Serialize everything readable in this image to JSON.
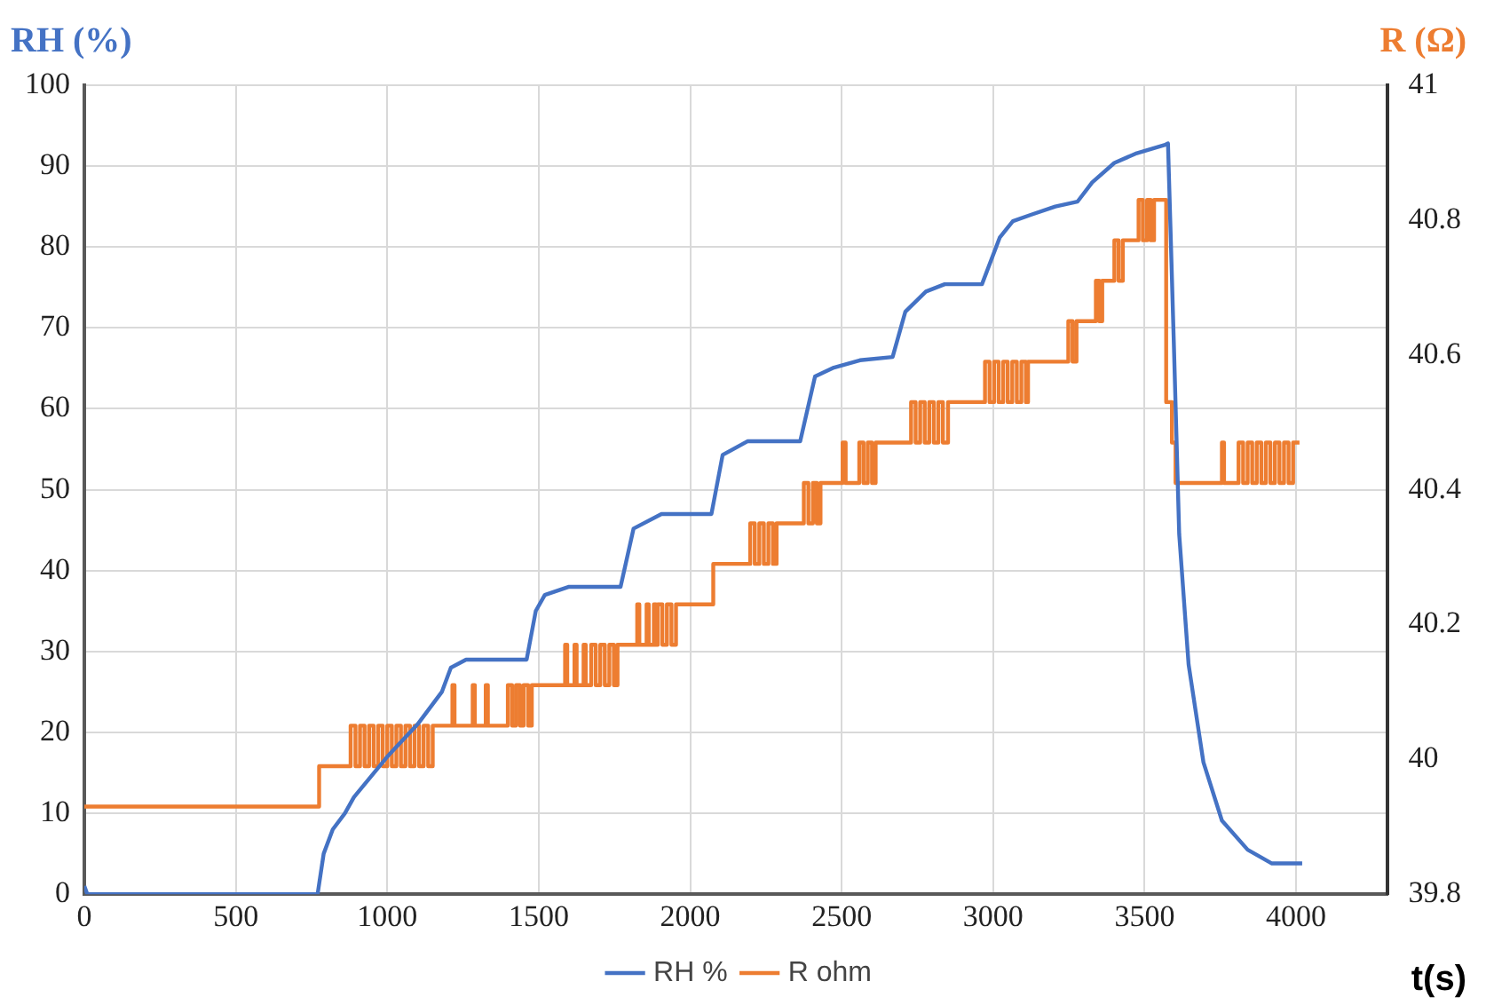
{
  "chart_data": {
    "type": "line",
    "ylabel": "RH (%)",
    "y2label": "R (Ω)",
    "xlabel": "t(s)",
    "xlim": [
      0,
      4300
    ],
    "xticks": [
      0,
      500,
      1000,
      1500,
      2000,
      2500,
      3000,
      3500,
      4000
    ],
    "ylim": [
      0,
      100
    ],
    "yticks": [
      0,
      10,
      20,
      30,
      40,
      50,
      60,
      70,
      80,
      90,
      100
    ],
    "y2lim": [
      39.8,
      41
    ],
    "y2ticks": [
      39.8,
      40,
      40.2,
      40.4,
      40.6,
      40.8,
      41
    ],
    "grid": true,
    "legend": "bottom",
    "marker": "none",
    "line_style": "solid",
    "series": [
      {
        "name": "RH %",
        "color": "#4472c4",
        "type": "line",
        "x": [
          0,
          10,
          770,
          790,
          820,
          860,
          890,
          1000,
          1100,
          1180,
          1210,
          1260,
          1460,
          1490,
          1520,
          1600,
          1770,
          1813,
          1905,
          2070,
          2107,
          2190,
          2363,
          2412,
          2474,
          2560,
          2668,
          2710,
          2778,
          2840,
          2963,
          3022,
          3065,
          3126,
          3205,
          3278,
          3327,
          3400,
          3474,
          3565,
          3577,
          3596,
          3614,
          3645,
          3694,
          3755,
          3840,
          3920,
          4020
        ],
        "values": [
          1,
          0,
          0,
          5,
          8,
          10,
          12,
          17,
          21,
          25,
          28,
          29,
          29,
          35,
          37,
          38,
          38,
          45.2,
          47,
          47,
          54.3,
          56,
          56,
          64,
          65.1,
          66,
          66.4,
          72,
          74.5,
          75.4,
          75.4,
          81.2,
          83.2,
          84,
          85,
          85.6,
          88,
          90.4,
          91.6,
          92.6,
          92.8,
          68.5,
          44.5,
          28.4,
          16.3,
          9.1,
          5.5,
          3.8,
          3.8
        ]
      },
      {
        "name": "R ohm",
        "color": "#ed7d31",
        "type": "step",
        "axis": "y2",
        "x": [
          0,
          775,
          879,
          895,
          910,
          925,
          940,
          955,
          970,
          985,
          1000,
          1015,
          1030,
          1045,
          1060,
          1075,
          1090,
          1105,
          1120,
          1135,
          1150,
          1215,
          1222,
          1282,
          1289,
          1325,
          1332,
          1398,
          1412,
          1425,
          1438,
          1450,
          1465,
          1477,
          1587,
          1594,
          1618,
          1625,
          1648,
          1655,
          1673,
          1688,
          1703,
          1718,
          1733,
          1748,
          1760,
          1825,
          1832,
          1856,
          1863,
          1880,
          1887,
          1893,
          1908,
          1923,
          1938,
          1953,
          2076,
          2198,
          2213,
          2228,
          2243,
          2258,
          2273,
          2285,
          2375,
          2390,
          2405,
          2418,
          2430,
          2503,
          2513,
          2558,
          2572,
          2586,
          2600,
          2612,
          2729,
          2744,
          2759,
          2774,
          2789,
          2804,
          2819,
          2834,
          2851,
          2973,
          2988,
          3003,
          3018,
          3033,
          3048,
          3063,
          3078,
          3093,
          3108,
          3115,
          3248,
          3262,
          3275,
          3339,
          3350,
          3360,
          3400,
          3414,
          3428,
          3480,
          3494,
          3508,
          3520,
          3531,
          3571,
          3590,
          3602,
          3755,
          3762,
          3810,
          3825,
          3840,
          3855,
          3870,
          3885,
          3900,
          3915,
          3930,
          3945,
          3960,
          3975,
          3990,
          4011
        ],
        "values": [
          39.93,
          39.99,
          40.05,
          39.99,
          40.05,
          39.99,
          40.05,
          39.99,
          40.05,
          39.99,
          40.05,
          39.99,
          40.05,
          39.99,
          40.05,
          39.99,
          40.05,
          39.99,
          40.05,
          39.99,
          40.05,
          40.11,
          40.05,
          40.11,
          40.05,
          40.11,
          40.05,
          40.11,
          40.05,
          40.11,
          40.05,
          40.11,
          40.05,
          40.11,
          40.17,
          40.11,
          40.17,
          40.11,
          40.17,
          40.11,
          40.17,
          40.11,
          40.17,
          40.11,
          40.17,
          40.11,
          40.17,
          40.23,
          40.17,
          40.23,
          40.17,
          40.23,
          40.17,
          40.23,
          40.17,
          40.23,
          40.17,
          40.23,
          40.29,
          40.35,
          40.29,
          40.35,
          40.29,
          40.35,
          40.29,
          40.35,
          40.41,
          40.35,
          40.41,
          40.35,
          40.41,
          40.47,
          40.41,
          40.47,
          40.41,
          40.47,
          40.41,
          40.47,
          40.53,
          40.47,
          40.53,
          40.47,
          40.53,
          40.47,
          40.53,
          40.47,
          40.53,
          40.59,
          40.53,
          40.59,
          40.53,
          40.59,
          40.53,
          40.59,
          40.53,
          40.59,
          40.53,
          40.59,
          40.65,
          40.59,
          40.65,
          40.71,
          40.65,
          40.71,
          40.77,
          40.71,
          40.77,
          40.83,
          40.77,
          40.83,
          40.77,
          40.83,
          40.53,
          40.47,
          40.41,
          40.47,
          40.41,
          40.47,
          40.41,
          40.47,
          40.41,
          40.47,
          40.41,
          40.47,
          40.41,
          40.47,
          40.41,
          40.47,
          40.41,
          40.47,
          40.47
        ]
      }
    ]
  }
}
